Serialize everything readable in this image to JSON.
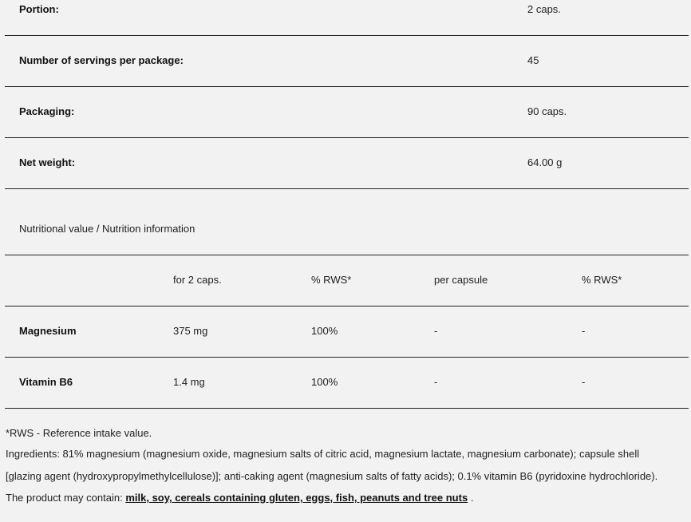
{
  "specs": [
    {
      "label": "Portion:",
      "value": "2 caps."
    },
    {
      "label": "Number of servings per package:",
      "value": "45"
    },
    {
      "label": "Packaging:",
      "value": "90 caps."
    },
    {
      "label": "Net weight:",
      "value": "64.00 g"
    }
  ],
  "nutrition": {
    "title": "Nutritional value / Nutrition information",
    "headers": [
      "",
      "for 2 caps.",
      "% RWS*",
      "per capsule",
      "% RWS*"
    ],
    "rows": [
      [
        "Magnesium",
        "375 mg",
        "100%",
        "-",
        "-"
      ],
      [
        "Vitamin B6",
        "1.4 mg",
        "100%",
        "-",
        "-"
      ]
    ]
  },
  "footer": {
    "rws_note": "*RWS - Reference intake value.",
    "ingredients_line1": "Ingredients: 81% magnesium (magnesium oxide, magnesium salts of citric acid, magnesium lactate, magnesium carbonate); capsule shell",
    "ingredients_line2": "[glazing agent (hydroxypropylmethylcellulose)]; anti-caking agent (magnesium salts of fatty acids); 0.1% vitamin B6 (pyridoxine hydrochloride).",
    "may_contain_prefix": "The product may contain:",
    "allergens": "milk, soy, cereals containing gluten, eggs, fish, peanuts and tree nuts",
    "may_contain_suffix": "."
  }
}
